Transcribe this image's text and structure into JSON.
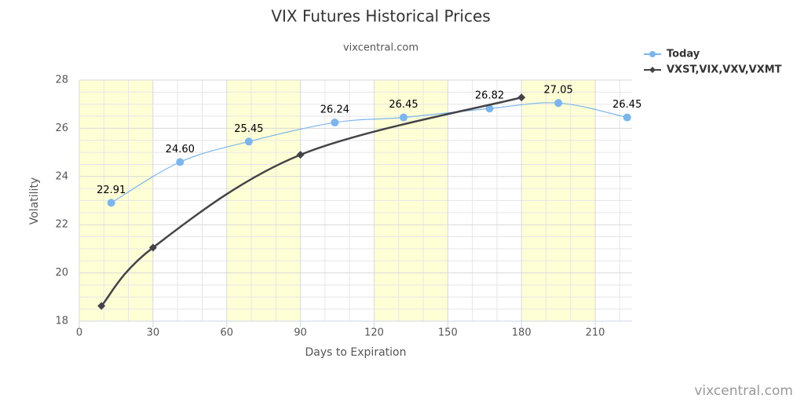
{
  "chart_data": {
    "type": "line",
    "title": "VIX Futures Historical Prices",
    "subtitle": "vixcentral.com",
    "credit": "vixcentral.com",
    "x_label": "Days to Expiration",
    "y_label": "Volatility",
    "xlim": [
      0,
      225
    ],
    "xticks": [
      0,
      30,
      60,
      90,
      120,
      150,
      180,
      210
    ],
    "ylim": [
      18,
      28
    ],
    "yticks": [
      18,
      20,
      22,
      24,
      26,
      28
    ],
    "grid": true,
    "legend": "top-right",
    "plot_bands": [
      [
        0,
        30
      ],
      [
        60,
        90
      ],
      [
        120,
        150
      ],
      [
        180,
        210
      ]
    ],
    "band_color": "#ffffd6",
    "series": [
      {
        "name": "Today",
        "color": "#7cb5ec",
        "marker": "circle",
        "x": [
          13,
          41,
          69,
          104,
          132,
          167,
          195,
          223
        ],
        "values": [
          22.91,
          24.6,
          25.45,
          26.24,
          26.45,
          26.82,
          27.05,
          26.45
        ],
        "value_labels": [
          "22.91",
          "24.60",
          "25.45",
          "26.24",
          "26.45",
          "26.82",
          "27.05",
          "26.45"
        ]
      },
      {
        "name": "VXST,VIX,VXV,VXMT",
        "color": "#434348",
        "marker": "diamond",
        "x": [
          9,
          30,
          90,
          180
        ],
        "values": [
          18.63,
          21.05,
          24.9,
          27.28
        ]
      }
    ]
  }
}
